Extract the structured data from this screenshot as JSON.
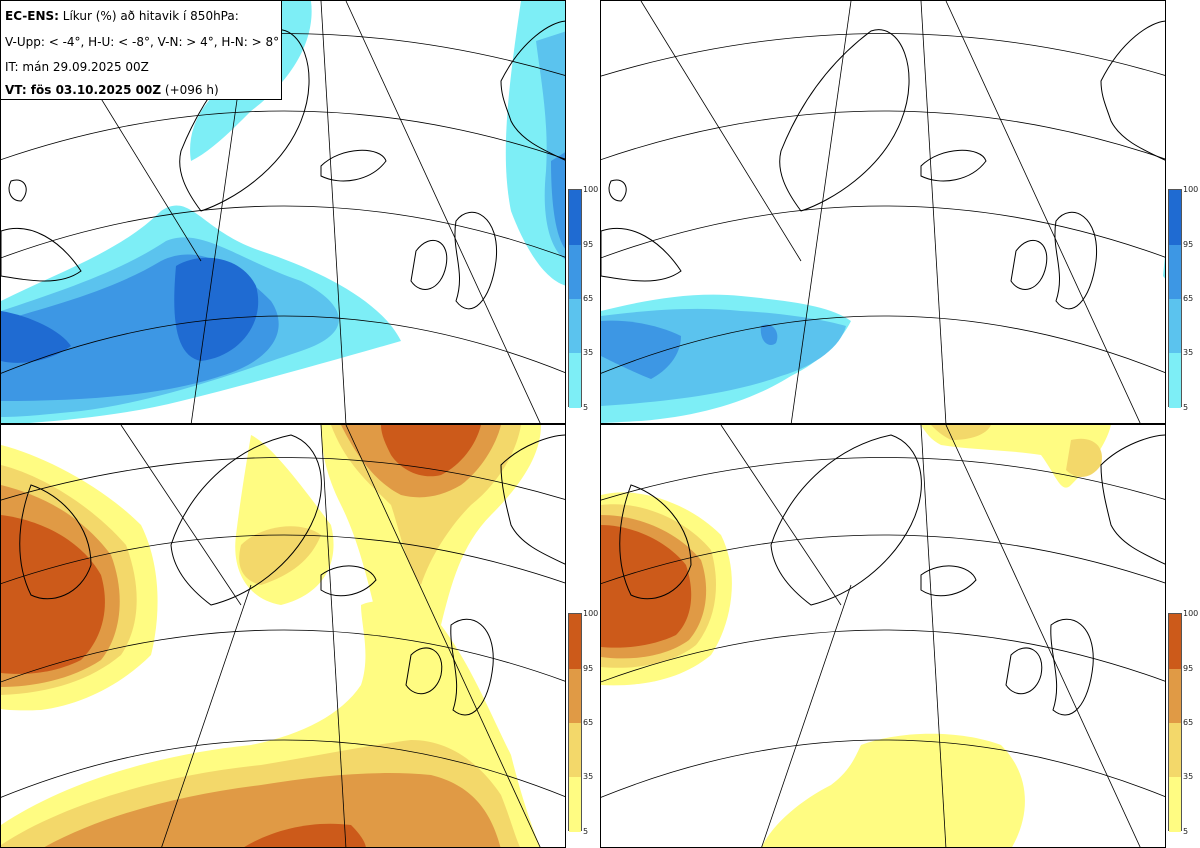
{
  "title": {
    "model": "EC-ENS:",
    "line1_rest": "Líkur (%) að hitavik í 850hPa:",
    "line2": "V-Upp: < -4°, H-U: < -8°, V-N: > 4°, H-N: > 8°",
    "line3": "IT: mán 29.09.2025 00Z",
    "vt_label": "VT: fös 03.10.2025 00Z",
    "vt_rest": "(+096 h)"
  },
  "panels": [
    {
      "name": "V-Upp",
      "threshold": "< -4°",
      "scheme": "cold"
    },
    {
      "name": "H-U",
      "threshold": "< -8°",
      "scheme": "cold"
    },
    {
      "name": "V-N",
      "threshold": "> 4°",
      "scheme": "warm"
    },
    {
      "name": "H-N",
      "threshold": "> 8°",
      "scheme": "warm"
    }
  ],
  "colorbar": {
    "ticks": [
      "100",
      "95",
      "65",
      "35",
      "5"
    ],
    "cold_colors": [
      "#1f6bd2",
      "#3d97e4",
      "#5bc3ee",
      "#7deef6"
    ],
    "warm_colors": [
      "#cc5a1a",
      "#e09a45",
      "#f3d86a",
      "#fffc82"
    ]
  }
}
